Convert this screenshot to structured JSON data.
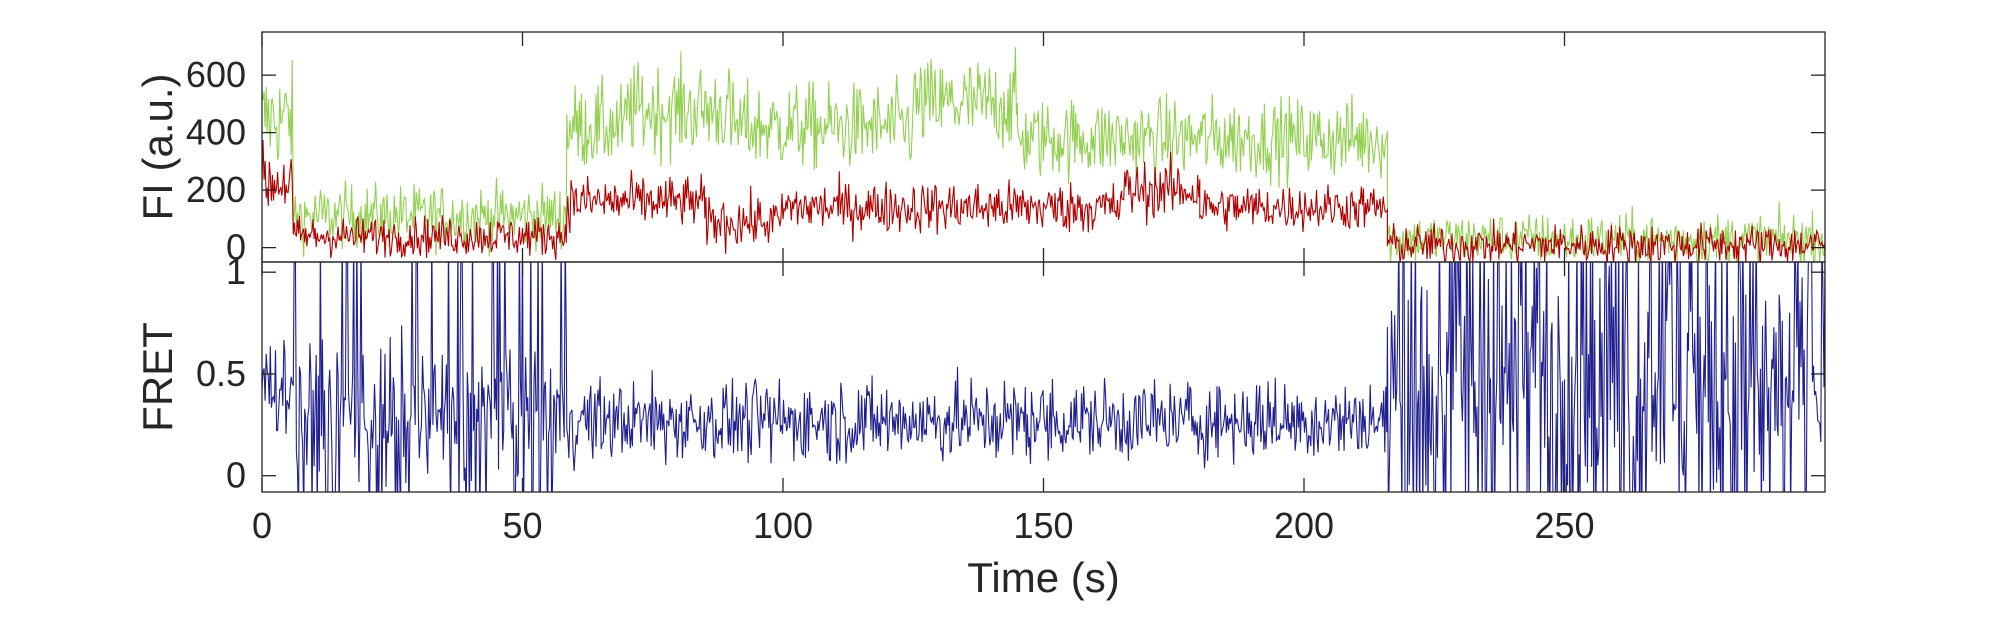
{
  "chart_data": [
    {
      "type": "line",
      "panel": "top",
      "ylabel": "FI (a.u.)",
      "xlim": [
        0,
        300
      ],
      "ylim": [
        -50,
        750
      ],
      "yticks": [
        0,
        200,
        400,
        600
      ],
      "grid": false,
      "legend": "none",
      "series": [
        {
          "color": "#92d050",
          "segments": [
            {
              "x": [
                0,
                6
              ],
              "mean": 450,
              "noise": 90
            },
            {
              "x": [
                6,
                58.5
              ],
              "mean": 110,
              "noise": 55
            },
            {
              "x": [
                58.5,
                70
              ],
              "mean": 420,
              "noise": 75
            },
            {
              "x": [
                70,
                90
              ],
              "mean": 480,
              "noise": 80
            },
            {
              "x": [
                90,
                125
              ],
              "mean": 420,
              "noise": 75
            },
            {
              "x": [
                125,
                145
              ],
              "mean": 500,
              "noise": 80
            },
            {
              "x": [
                145,
                216
              ],
              "mean": 380,
              "noise": 70
            },
            {
              "x": [
                216,
                300
              ],
              "mean": 30,
              "noise": 45
            }
          ]
        },
        {
          "color": "#b00000",
          "segments": [
            {
              "x": [
                0,
                6
              ],
              "mean": 230,
              "noise": 60
            },
            {
              "x": [
                6,
                58.5
              ],
              "mean": 40,
              "noise": 35
            },
            {
              "x": [
                58.5,
                85
              ],
              "mean": 160,
              "noise": 45
            },
            {
              "x": [
                85,
                100
              ],
              "mean": 90,
              "noise": 45
            },
            {
              "x": [
                100,
                165
              ],
              "mean": 140,
              "noise": 45
            },
            {
              "x": [
                165,
                180
              ],
              "mean": 200,
              "noise": 50
            },
            {
              "x": [
                180,
                216
              ],
              "mean": 140,
              "noise": 40
            },
            {
              "x": [
                216,
                300
              ],
              "mean": 10,
              "noise": 35
            }
          ]
        }
      ]
    },
    {
      "type": "line",
      "panel": "bottom",
      "xlabel": "Time (s)",
      "ylabel": "FRET",
      "xlim": [
        0,
        300
      ],
      "ylim": [
        -0.08,
        1.05
      ],
      "xticks": [
        0,
        50,
        100,
        150,
        200,
        250
      ],
      "yticks": [
        0,
        0.5,
        1
      ],
      "yticklabels": [
        "0",
        "0.5",
        "1"
      ],
      "grid": false,
      "legend": "none",
      "series": [
        {
          "color": "#1f1f8f",
          "segments": [
            {
              "x": [
                0,
                6
              ],
              "mean": 0.45,
              "noise": 0.12,
              "chaotic": false
            },
            {
              "x": [
                6,
                58.5
              ],
              "mean": 0.3,
              "noise": 0.28,
              "chaotic": true
            },
            {
              "x": [
                58.5,
                216
              ],
              "mean": 0.27,
              "noise": 0.1,
              "chaotic": false
            },
            {
              "x": [
                216,
                300
              ],
              "mean": 0.5,
              "noise": 0.6,
              "chaotic": true
            }
          ]
        }
      ]
    }
  ]
}
